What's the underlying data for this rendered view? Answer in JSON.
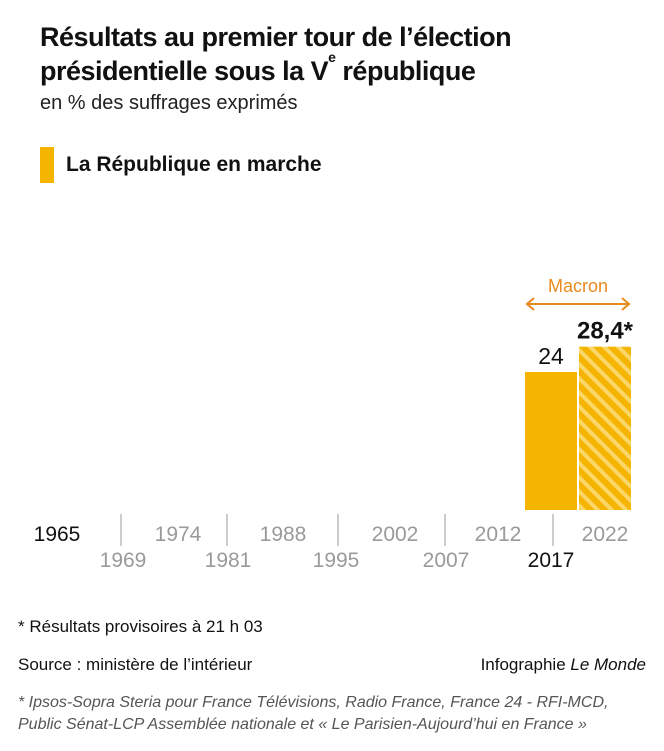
{
  "header": {
    "title_line1": "Résultats au premier tour de l’élection",
    "title_line2_prefix": "présidentielle sous la V",
    "title_line2_sup": "e",
    "title_line2_suffix": " république",
    "subtitle": "en % des suffrages exprimés"
  },
  "legend": {
    "label": "La République en marche"
  },
  "chart_data": {
    "type": "bar",
    "title": "Résultats au premier tour de l’élection présidentielle sous la Ve république",
    "subtitle": "en % des suffrages exprimés",
    "categories": [
      "1965",
      "1969",
      "1974",
      "1981",
      "1988",
      "1995",
      "2002",
      "2007",
      "2012",
      "2017",
      "2022"
    ],
    "series": [
      {
        "name": "La République en marche",
        "values": [
          null,
          null,
          null,
          null,
          null,
          null,
          null,
          null,
          null,
          24,
          28.4
        ],
        "value_labels": [
          null,
          null,
          null,
          null,
          null,
          null,
          null,
          null,
          null,
          "24",
          "28,4*"
        ]
      }
    ],
    "highlighted_categories": [
      "1965",
      "2017"
    ],
    "provisional_category": "2022",
    "annotation": "Macron",
    "ylim": [
      0,
      32
    ],
    "colors": {
      "bar": "#f5b400",
      "annotation": "#e8891e",
      "tick_inactive": "#9a9a9a",
      "tick_active": "#111111"
    }
  },
  "footer": {
    "note": "* Résultats provisoires à 21 h 03",
    "source": "Source : ministère de l’intérieur",
    "credit_prefix": "Infographie ",
    "credit_brand": "Le Monde",
    "poll_note": "* Ipsos-Sopra Steria pour France Télévisions, Radio France, France 24 - RFI-MCD, Public Sénat-LCP Assemblée nationale et  « Le Parisien-Aujourd’hui en France »"
  }
}
